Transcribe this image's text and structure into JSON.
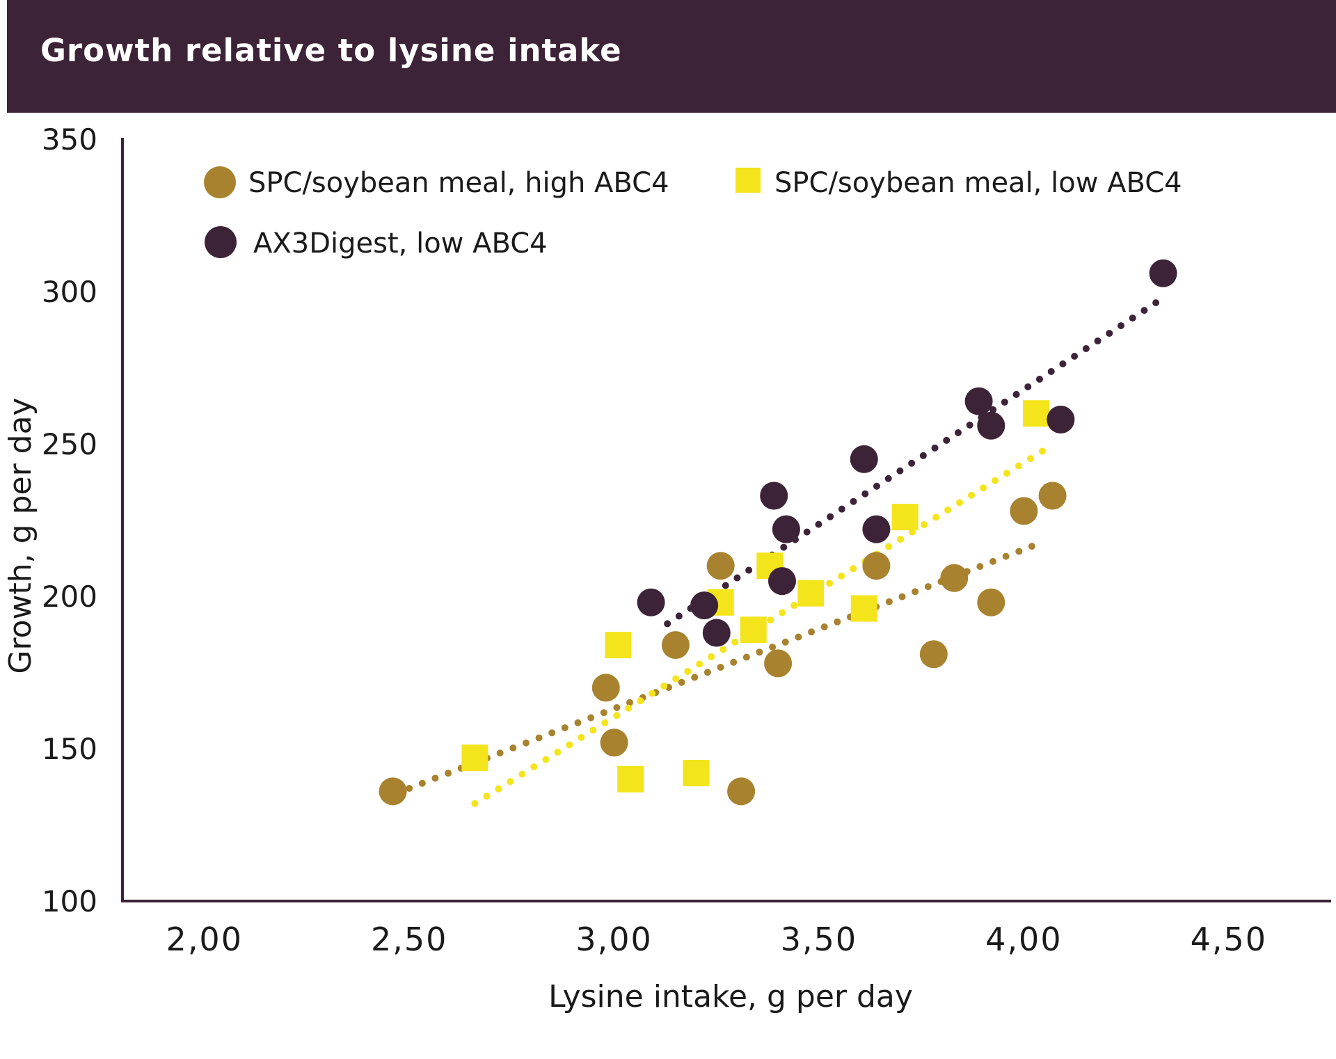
{
  "chart_data": {
    "type": "scatter",
    "title": "Growth relative to lysine intake",
    "xlabel": "Lysine intake, g per day",
    "ylabel": "Growth, g per day",
    "xlim": [
      1.8,
      4.75
    ],
    "ylim": [
      100,
      350
    ],
    "x_ticks": [
      "2,00",
      "2,50",
      "3,00",
      "3,50",
      "4,00",
      "4,50"
    ],
    "x_tick_values": [
      2.0,
      2.5,
      3.0,
      3.5,
      4.0,
      4.5
    ],
    "y_ticks": [
      "100",
      "150",
      "200",
      "250",
      "300",
      "350"
    ],
    "y_tick_values": [
      100,
      150,
      200,
      250,
      300,
      350
    ],
    "grid": false,
    "legend_position": "top-left",
    "series": [
      {
        "name": "SPC/soybean meal, high ABC4",
        "marker": "circle",
        "color": "#a8822e",
        "points": [
          [
            2.46,
            136
          ],
          [
            2.98,
            170
          ],
          [
            3.0,
            152
          ],
          [
            3.15,
            184
          ],
          [
            3.26,
            210
          ],
          [
            3.31,
            136
          ],
          [
            3.4,
            178
          ],
          [
            3.64,
            210
          ],
          [
            3.78,
            181
          ],
          [
            3.83,
            206
          ],
          [
            3.92,
            198
          ],
          [
            4.0,
            228
          ],
          [
            4.07,
            233
          ]
        ],
        "trendline": [
          [
            2.5,
            137
          ],
          [
            4.05,
            218
          ]
        ]
      },
      {
        "name": "SPC/soybean meal, low ABC4",
        "marker": "square",
        "color": "#f4e41c",
        "points": [
          [
            2.66,
            147
          ],
          [
            3.01,
            184
          ],
          [
            3.04,
            140
          ],
          [
            3.2,
            142
          ],
          [
            3.26,
            198
          ],
          [
            3.34,
            189
          ],
          [
            3.38,
            210
          ],
          [
            3.48,
            201
          ],
          [
            3.61,
            196
          ],
          [
            3.71,
            226
          ],
          [
            4.03,
            260
          ]
        ],
        "trendline": [
          [
            2.66,
            132
          ],
          [
            4.05,
            248
          ]
        ]
      },
      {
        "name": "AX3Digest, low ABC4",
        "marker": "circle",
        "color": "#3d2338",
        "points": [
          [
            3.09,
            198
          ],
          [
            3.22,
            197
          ],
          [
            3.25,
            188
          ],
          [
            3.39,
            233
          ],
          [
            3.41,
            205
          ],
          [
            3.42,
            222
          ],
          [
            3.61,
            245
          ],
          [
            3.64,
            222
          ],
          [
            3.89,
            264
          ],
          [
            3.92,
            256
          ],
          [
            4.09,
            258
          ],
          [
            4.34,
            306
          ]
        ],
        "trendline": [
          [
            3.13,
            191
          ],
          [
            4.33,
            297
          ]
        ]
      }
    ]
  }
}
